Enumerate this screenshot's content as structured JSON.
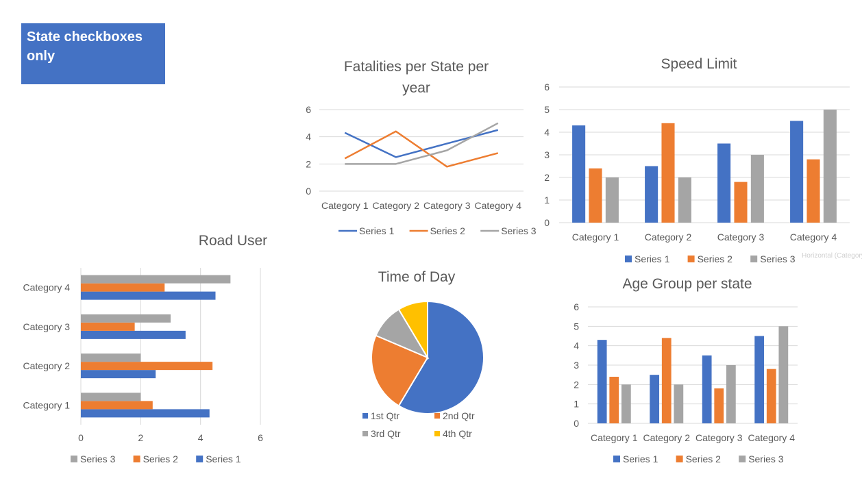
{
  "note": {
    "text": "State checkboxes only"
  },
  "tooltip": {
    "text": "Horizontal (Category"
  },
  "colors": {
    "series1": "#4472C4",
    "series2": "#ED7D31",
    "series3": "#A5A5A5",
    "series4": "#FFC000"
  },
  "chart_data": [
    {
      "id": "fatalities",
      "type": "line",
      "title": "Fatalities per State per year",
      "categories": [
        "Category 1",
        "Category 2",
        "Category 3",
        "Category 4"
      ],
      "series": [
        {
          "name": "Series 1",
          "values": [
            4.3,
            2.5,
            3.5,
            4.5
          ],
          "color": "#4472C4"
        },
        {
          "name": "Series 2",
          "values": [
            2.4,
            4.4,
            1.8,
            2.8
          ],
          "color": "#ED7D31"
        },
        {
          "name": "Series 3",
          "values": [
            2,
            2,
            3,
            5
          ],
          "color": "#A5A5A5"
        }
      ],
      "ylim": [
        0,
        6
      ],
      "yticks": [
        0,
        2,
        4,
        6
      ],
      "grid": true,
      "legend": "bottom"
    },
    {
      "id": "speed",
      "type": "bar",
      "title": "Speed Limit",
      "categories": [
        "Category 1",
        "Category 2",
        "Category 3",
        "Category 4"
      ],
      "series": [
        {
          "name": "Series 1",
          "values": [
            4.3,
            2.5,
            3.5,
            4.5
          ],
          "color": "#4472C4"
        },
        {
          "name": "Series 2",
          "values": [
            2.4,
            4.4,
            1.8,
            2.8
          ],
          "color": "#ED7D31"
        },
        {
          "name": "Series 3",
          "values": [
            2,
            2,
            3,
            5
          ],
          "color": "#A5A5A5"
        }
      ],
      "ylim": [
        0,
        6
      ],
      "yticks": [
        0,
        1,
        2,
        3,
        4,
        5,
        6
      ],
      "grid": true,
      "legend": "bottom"
    },
    {
      "id": "roaduser",
      "type": "bar",
      "orientation": "horizontal",
      "title": "Road User",
      "categories": [
        "Category 1",
        "Category 2",
        "Category 3",
        "Category 4"
      ],
      "series": [
        {
          "name": "Series 1",
          "values": [
            4.3,
            2.5,
            3.5,
            4.5
          ],
          "color": "#4472C4"
        },
        {
          "name": "Series 2",
          "values": [
            2.4,
            4.4,
            1.8,
            2.8
          ],
          "color": "#ED7D31"
        },
        {
          "name": "Series 3",
          "values": [
            2,
            2,
            3,
            5
          ],
          "color": "#A5A5A5"
        }
      ],
      "xlim": [
        0,
        6
      ],
      "xticks": [
        0,
        2,
        4,
        6
      ],
      "grid": true,
      "legend": "bottom"
    },
    {
      "id": "timeofday",
      "type": "pie",
      "title": "Time of Day",
      "categories": [
        "1st Qtr",
        "2nd Qtr",
        "3rd Qtr",
        "4th Qtr"
      ],
      "values": [
        8.2,
        3.2,
        1.4,
        1.2
      ],
      "colors": [
        "#4472C4",
        "#ED7D31",
        "#A5A5A5",
        "#FFC000"
      ],
      "legend": "bottom"
    },
    {
      "id": "agegroup",
      "type": "bar",
      "title": "Age Group per state",
      "categories": [
        "Category 1",
        "Category 2",
        "Category 3",
        "Category 4"
      ],
      "series": [
        {
          "name": "Series 1",
          "values": [
            4.3,
            2.5,
            3.5,
            4.5
          ],
          "color": "#4472C4"
        },
        {
          "name": "Series 2",
          "values": [
            2.4,
            4.4,
            1.8,
            2.8
          ],
          "color": "#ED7D31"
        },
        {
          "name": "Series 3",
          "values": [
            2,
            2,
            3,
            5
          ],
          "color": "#A5A5A5"
        }
      ],
      "ylim": [
        0,
        6
      ],
      "yticks": [
        0,
        1,
        2,
        3,
        4,
        5,
        6
      ],
      "grid": true,
      "legend": "bottom"
    }
  ]
}
